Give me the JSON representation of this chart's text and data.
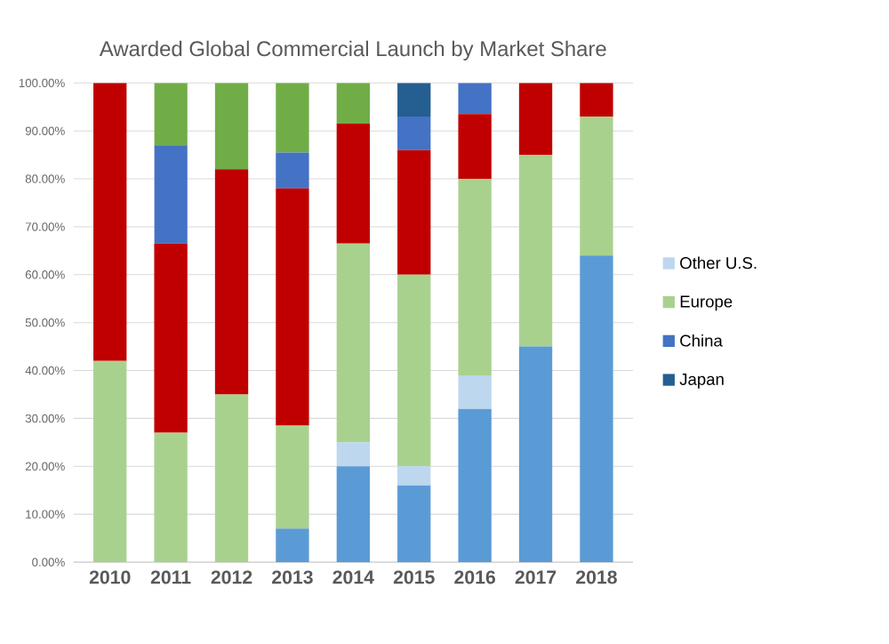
{
  "chart_data": {
    "type": "bar",
    "stacked": true,
    "title": "Awarded Global Commercial Launch by Market Share",
    "categories": [
      "2010",
      "2011",
      "2012",
      "2013",
      "2014",
      "2015",
      "2016",
      "2017",
      "2018"
    ],
    "series": [
      {
        "color": "#5b9bd5",
        "values": [
          0,
          0,
          0,
          7,
          20,
          16,
          32,
          45,
          64
        ]
      },
      {
        "name": "Other U.S.",
        "color": "#bdd7ee",
        "values": [
          0,
          0,
          0,
          0,
          5,
          4,
          7,
          0,
          0
        ]
      },
      {
        "name": "Europe",
        "color": "#a9d18e",
        "values": [
          42,
          27,
          35,
          21.5,
          41.5,
          40,
          41,
          40,
          29
        ]
      },
      {
        "color": "#c00000",
        "values": [
          58,
          39.5,
          47,
          49.5,
          25,
          26,
          13.5,
          15,
          7
        ]
      },
      {
        "name": "China",
        "color": "#4472c4",
        "values": [
          0,
          20.5,
          0,
          7.5,
          0,
          7,
          6.5,
          0,
          0
        ]
      },
      {
        "color": "#70ad47",
        "values": [
          0,
          13,
          18,
          14.5,
          8.5,
          0,
          0,
          0,
          0
        ]
      },
      {
        "name": "Japan",
        "color": "#255e91",
        "values": [
          0,
          0,
          0,
          0,
          0,
          7,
          0,
          0,
          0
        ]
      }
    ],
    "ylim": [
      0,
      100
    ],
    "yticks": [
      {
        "value": 0,
        "label": "0.00%"
      },
      {
        "value": 10,
        "label": "10.00%"
      },
      {
        "value": 20,
        "label": "20.00%"
      },
      {
        "value": 30,
        "label": "30.00%"
      },
      {
        "value": 40,
        "label": "40.00%"
      },
      {
        "value": 50,
        "label": "50.00%"
      },
      {
        "value": 60,
        "label": "60.00%"
      },
      {
        "value": 70,
        "label": "70.00%"
      },
      {
        "value": 80,
        "label": "80.00%"
      },
      {
        "value": 90,
        "label": "90.00%"
      },
      {
        "value": 100,
        "label": "100.00%"
      }
    ],
    "grid": "y",
    "legend": "right"
  }
}
